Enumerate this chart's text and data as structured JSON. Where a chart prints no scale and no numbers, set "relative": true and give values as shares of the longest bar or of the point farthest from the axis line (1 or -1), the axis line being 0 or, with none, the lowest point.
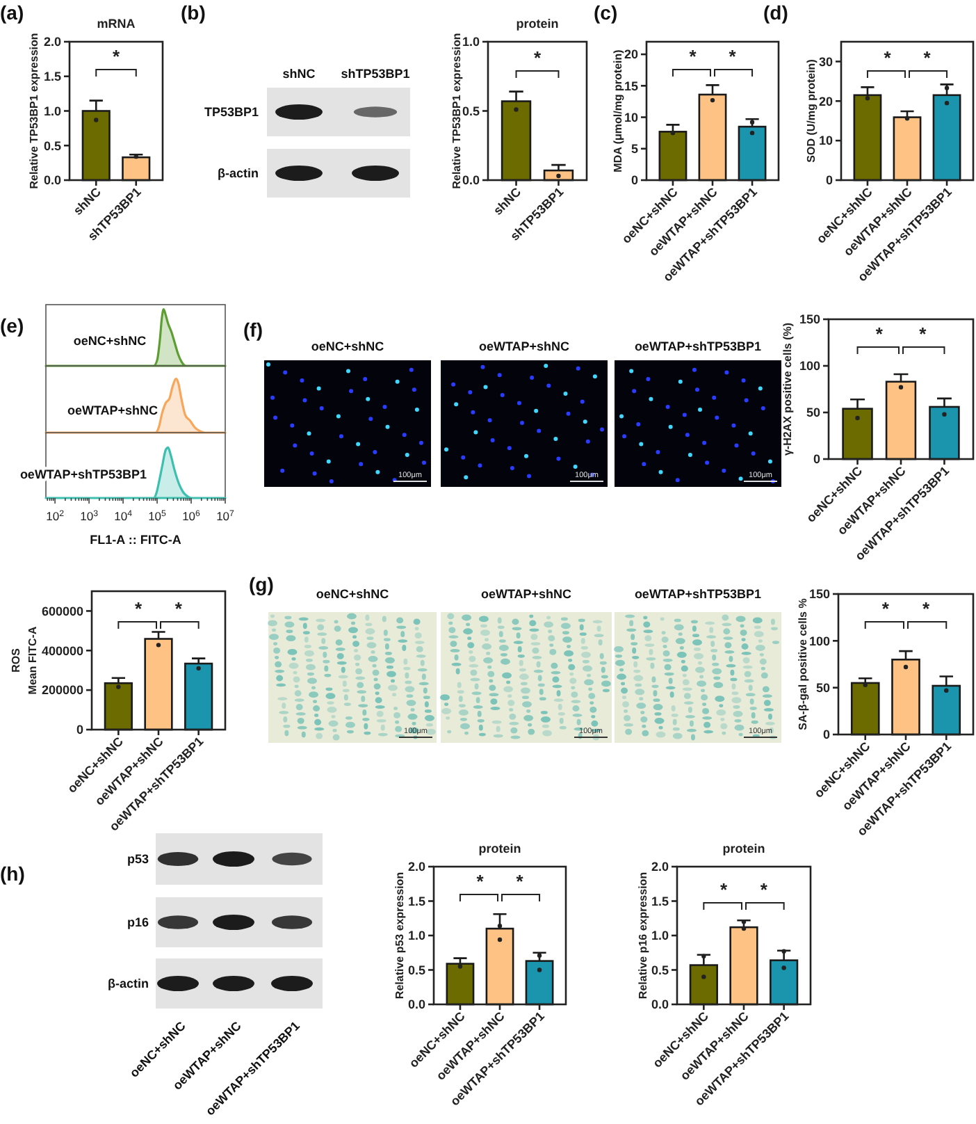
{
  "chart_data": [
    {
      "type": "bar",
      "title": "mRNA",
      "ylabel": "Relative TP53BP1 expression",
      "categories": [
        "shNC",
        "shTP53BP1"
      ],
      "ylim": [
        0,
        2
      ],
      "yticks": [
        {
          "value": 0,
          "label": "0.0"
        },
        {
          "value": 0.5,
          "label": "0.5"
        },
        {
          "value": 1,
          "label": "1.0"
        },
        {
          "value": 1.5,
          "label": "1.5"
        },
        {
          "value": 2,
          "label": "2.0"
        }
      ],
      "marker": "circle",
      "series": [
        {
          "type": "bar",
          "colors": [
            "#6b6b00",
            "#fec384"
          ],
          "values": [
            1.0,
            0.33
          ],
          "errors": [
            [
              1.0,
              1.15
            ],
            [
              0.33,
              0.37
            ]
          ]
        },
        {
          "type": "scatter",
          "color": "#222222",
          "x": [
            "shNC",
            "shTP53BP1"
          ],
          "values": [
            0.87,
            0.34
          ]
        }
      ],
      "annotations": [
        "(a)",
        "*"
      ]
    },
    {
      "type": "other",
      "categories": [
        "shNC",
        "shTP53BP1"
      ],
      "y_categories": [
        "TP53BP1",
        "β-actin"
      ],
      "annotations": [
        "(b)"
      ]
    },
    {
      "type": "bar",
      "title": "protein",
      "ylabel": "Relative TP53BP1 expression",
      "categories": [
        "shNC",
        "shTP53BP1"
      ],
      "ylim": [
        0,
        1
      ],
      "yticks": [
        {
          "value": 0,
          "label": "0.0"
        },
        {
          "value": 0.5,
          "label": "0.5"
        },
        {
          "value": 1,
          "label": "1.0"
        }
      ],
      "marker": "circle",
      "series": [
        {
          "type": "bar",
          "colors": [
            "#6b6b00",
            "#fec384"
          ],
          "values": [
            0.57,
            0.07
          ],
          "errors": [
            [
              0.57,
              0.64
            ],
            [
              0.07,
              0.11
            ]
          ]
        },
        {
          "type": "scatter",
          "color": "#222222",
          "x": [
            "shNC",
            "shTP53BP1"
          ],
          "values": [
            0.51,
            0.03
          ]
        }
      ],
      "annotations": [
        "*"
      ]
    },
    {
      "type": "bar",
      "ylabel": "MDA (μmol/mg protein)",
      "categories": [
        "oeNC+shNC",
        "oeWTAP+shNC",
        "oeWTAP+shTP53BP1"
      ],
      "ylim": [
        0,
        22
      ],
      "yticks": [
        0,
        5,
        10,
        15,
        20
      ],
      "marker": "circle",
      "series": [
        {
          "type": "bar",
          "colors": [
            "#6b6b00",
            "#fec384",
            "#1b94ad"
          ],
          "values": [
            7.7,
            13.6,
            8.5
          ],
          "errors": [
            [
              7.7,
              8.8
            ],
            [
              13.6,
              15.1
            ],
            [
              8.5,
              9.7
            ]
          ]
        },
        {
          "type": "scatter",
          "color": "#222222",
          "x": [
            "oeNC+shNC",
            "oeWTAP+shNC",
            "oeWTAP+shTP53BP1",
            "oeWTAP+shTP53BP1"
          ],
          "values": [
            7.5,
            12.7,
            9.2,
            7.5
          ]
        }
      ],
      "annotations": [
        "(c)",
        "*",
        "*"
      ]
    },
    {
      "type": "bar",
      "ylabel": "SOD (U/mg protein)",
      "categories": [
        "oeNC+shNC",
        "oeWTAP+shNC",
        "oeWTAP+shTP53BP1"
      ],
      "ylim": [
        0,
        35
      ],
      "yticks": [
        0,
        10,
        20,
        30
      ],
      "marker": "circle",
      "series": [
        {
          "type": "bar",
          "colors": [
            "#6b6b00",
            "#fec384",
            "#1b94ad"
          ],
          "values": [
            21.5,
            15.9,
            21.5
          ],
          "errors": [
            [
              21.5,
              23.5
            ],
            [
              15.9,
              17.4
            ],
            [
              21.5,
              24.2
            ]
          ]
        },
        {
          "type": "scatter",
          "color": "#222222",
          "x": [
            "oeNC+shNC",
            "oeWTAP+shNC",
            "oeWTAP+shTP53BP1",
            "oeWTAP+shTP53BP1"
          ],
          "values": [
            20.7,
            15.6,
            23.3,
            19.5
          ]
        }
      ],
      "annotations": [
        "(d)",
        "*",
        "*"
      ]
    },
    {
      "type": "area",
      "relative": true,
      "log": "x",
      "xlim": [
        54,
        10000000
      ],
      "x": [
        54,
        79400,
        100000,
        120000,
        138000,
        155000,
        178000,
        209000,
        263000,
        331000,
        417000,
        525000,
        708000,
        10000000
      ],
      "series": [
        {
          "name": "oeNC+shNC",
          "color": "#5c9e31",
          "values": [
            0,
            0,
            0.1,
            0.45,
            0.85,
            1,
            0.9,
            0.75,
            0.6,
            0.4,
            0.2,
            0.07,
            0,
            0
          ]
        }
      ],
      "annotations": [
        "(e)"
      ]
    },
    {
      "type": "area",
      "relative": true,
      "log": "x",
      "xlim": [
        54,
        10000000
      ],
      "x": [
        54,
        89100,
        112000,
        141000,
        178000,
        229000,
        282000,
        363000,
        427000,
        501000,
        676000,
        933000,
        1260000,
        1780000,
        2510000,
        10000000
      ],
      "series": [
        {
          "name": "oeWTAP+shNC",
          "color": "#f7a65a",
          "values": [
            0,
            0,
            0.1,
            0.37,
            0.55,
            0.63,
            0.85,
            1,
            0.9,
            0.67,
            0.32,
            0.22,
            0.1,
            0.03,
            0,
            0
          ]
        }
      ]
    },
    {
      "type": "area",
      "relative": true,
      "log": "x",
      "xlim": [
        54,
        10000000
      ],
      "xticks": [
        {
          "value": 60,
          "label": null
        },
        {
          "value": 70,
          "label": null
        },
        {
          "value": 80,
          "label": null
        },
        {
          "value": 90,
          "label": null
        },
        {
          "value": 100,
          "label": "10$^{2}$"
        },
        {
          "value": 200,
          "label": null
        },
        {
          "value": 300,
          "label": null
        },
        {
          "value": 400,
          "label": null
        },
        {
          "value": 500,
          "label": null
        },
        {
          "value": 600,
          "label": null
        },
        {
          "value": 700,
          "label": null
        },
        {
          "value": 800,
          "label": null
        },
        {
          "value": 900,
          "label": null
        },
        {
          "value": 1000,
          "label": "10$^{3}$"
        },
        {
          "value": 2000,
          "label": null
        },
        {
          "value": 3000,
          "label": null
        },
        {
          "value": 4000,
          "label": null
        },
        {
          "value": 5000,
          "label": null
        },
        {
          "value": 6000,
          "label": null
        },
        {
          "value": 7000,
          "label": null
        },
        {
          "value": 8000,
          "label": null
        },
        {
          "value": 9000,
          "label": null
        },
        {
          "value": 10000,
          "label": "10$^{4}$"
        },
        {
          "value": 20000,
          "label": null
        },
        {
          "value": 30000,
          "label": null
        },
        {
          "value": 40000,
          "label": null
        },
        {
          "value": 50000,
          "label": null
        },
        {
          "value": 60000,
          "label": null
        },
        {
          "value": 70000,
          "label": null
        },
        {
          "value": 80000,
          "label": null
        },
        {
          "value": 90000,
          "label": null
        },
        {
          "value": 100000,
          "label": "10$^{5}$"
        },
        {
          "value": 200000,
          "label": null
        },
        {
          "value": 300000,
          "label": null
        },
        {
          "value": 400000,
          "label": null
        },
        {
          "value": 500000,
          "label": null
        },
        {
          "value": 600000,
          "label": null
        },
        {
          "value": 700000,
          "label": null
        },
        {
          "value": 800000,
          "label": null
        },
        {
          "value": 900000,
          "label": null
        },
        {
          "value": 1000000,
          "label": "10$^{6}$"
        },
        {
          "value": 2000000,
          "label": null
        },
        {
          "value": 3000000,
          "label": null
        },
        {
          "value": 4000000,
          "label": null
        },
        {
          "value": 5000000,
          "label": null
        },
        {
          "value": 6000000,
          "label": null
        },
        {
          "value": 7000000,
          "label": null
        },
        {
          "value": 8000000,
          "label": null
        },
        {
          "value": 9000000,
          "label": null
        },
        {
          "value": 10000000,
          "label": "10$^{7}$"
        }
      ],
      "tick_labels": "x",
      "xlabel": "FL1-A :: FITC-A",
      "x": [
        54,
        79400,
        95500,
        112000,
        141000,
        178000,
        209000,
        251000,
        316000,
        427000,
        589000,
        794000,
        1000000,
        10000000
      ],
      "series": [
        {
          "name": "oeWTAP+shTP53BP1",
          "color": "#3dbfb0",
          "values": [
            0,
            0,
            0.1,
            0.3,
            0.63,
            0.95,
            1,
            0.85,
            0.58,
            0.3,
            0.11,
            0.03,
            0,
            0
          ]
        }
      ]
    },
    {
      "type": "other",
      "categories": [
        "oeNC+shNC",
        "oeWTAP+shNC",
        "oeWTAP+shTP53BP1"
      ],
      "annotations": [
        "(f)",
        "100μm",
        "100μm",
        "100μm"
      ]
    },
    {
      "type": "bar",
      "ylabel": "γ-H2AX positive cells (%)",
      "categories": [
        "oeNC+shNC",
        "oeWTAP+shNC",
        "oeWTAP+shTP53BP1"
      ],
      "ylim": [
        0,
        150
      ],
      "yticks": [
        0,
        50,
        100,
        150
      ],
      "marker": "circle",
      "series": [
        {
          "type": "bar",
          "colors": [
            "#6b6b00",
            "#fec384",
            "#1b94ad"
          ],
          "values": [
            54,
            83,
            56
          ],
          "errors": [
            [
              54,
              64
            ],
            [
              83,
              91
            ],
            [
              56,
              65
            ]
          ]
        },
        {
          "type": "scatter",
          "color": "#222222",
          "x": [
            "oeNC+shNC",
            "oeWTAP+shNC",
            "oeWTAP+shTP53BP1"
          ],
          "values": [
            44,
            77,
            48
          ]
        }
      ],
      "annotations": [
        "*",
        "*"
      ]
    },
    {
      "type": "bar",
      "ylabel": "ROS\nMean FITC-A",
      "categories": [
        "oeNC+shNC",
        "oeWTAP+shNC",
        "oeWTAP+shTP53BP1"
      ],
      "ylim": [
        0,
        700000
      ],
      "yticks": [
        0,
        200000,
        400000,
        600000
      ],
      "marker": "circle",
      "series": [
        {
          "type": "bar",
          "colors": [
            "#6b6b00",
            "#fec384",
            "#1b94ad"
          ],
          "values": [
            235000,
            459000,
            334000
          ],
          "errors": [
            [
              235000,
              261000
            ],
            [
              459000,
              494000
            ],
            [
              334000,
              360000
            ]
          ]
        },
        {
          "type": "scatter",
          "color": "#222222",
          "x": [
            "oeNC+shNC",
            "oeWTAP+shNC",
            "oeWTAP+shTP53BP1"
          ],
          "values": [
            216000,
            428000,
            310000
          ]
        }
      ],
      "annotations": [
        "*",
        "*"
      ]
    },
    {
      "type": "other",
      "categories": [
        "oeNC+shNC",
        "oeWTAP+shNC",
        "oeWTAP+shTP53BP1"
      ],
      "annotations": [
        "(g)",
        "100μm",
        "100μm",
        "100μm"
      ]
    },
    {
      "type": "bar",
      "ylabel": "SA-β-gal positive cells %",
      "categories": [
        "oeNC+shNC",
        "oeWTAP+shNC",
        "oeWTAP+shTP53BP1"
      ],
      "ylim": [
        0,
        150
      ],
      "yticks": [
        0,
        50,
        100,
        150
      ],
      "marker": "circle",
      "series": [
        {
          "type": "bar",
          "colors": [
            "#6b6b00",
            "#fec384",
            "#1b94ad"
          ],
          "values": [
            55,
            80,
            52
          ],
          "errors": [
            [
              55,
              60
            ],
            [
              80,
              89
            ],
            [
              52,
              62
            ]
          ]
        },
        {
          "type": "scatter",
          "color": "#222222",
          "x": [
            "oeNC+shNC",
            "oeWTAP+shNC",
            "oeWTAP+shTP53BP1"
          ],
          "values": [
            53,
            72,
            47
          ]
        }
      ],
      "annotations": [
        "*",
        "*"
      ]
    },
    {
      "type": "other",
      "categories": [
        "oeNC+shNC",
        "oeWTAP+shNC",
        "oeWTAP+shTP53BP1"
      ],
      "y_categories": [
        "p53",
        "p16",
        "β-actin"
      ],
      "annotations": [
        "(h)"
      ]
    },
    {
      "type": "bar",
      "title": "protein",
      "ylabel": "Relative p53 expression",
      "categories": [
        "oeNC+shNC",
        "oeWTAP+shNC",
        "oeWTAP+shTP53BP1"
      ],
      "ylim": [
        0,
        2
      ],
      "yticks": [
        {
          "value": 0,
          "label": "0.0"
        },
        {
          "value": 0.5,
          "label": "0.5"
        },
        {
          "value": 1,
          "label": "1.0"
        },
        {
          "value": 1.5,
          "label": "1.5"
        },
        {
          "value": 2,
          "label": "2.0"
        }
      ],
      "marker": "circle",
      "series": [
        {
          "type": "bar",
          "colors": [
            "#6b6b00",
            "#fec384",
            "#1b94ad"
          ],
          "values": [
            0.59,
            1.1,
            0.63
          ],
          "errors": [
            [
              0.59,
              0.67
            ],
            [
              1.1,
              1.31
            ],
            [
              0.63,
              0.75
            ]
          ]
        },
        {
          "type": "scatter",
          "color": "#222222",
          "x": [
            "oeNC+shNC",
            "oeWTAP+shNC",
            "oeWTAP+shNC",
            "oeWTAP+shTP53BP1",
            "oeWTAP+shTP53BP1"
          ],
          "values": [
            0.55,
            1.14,
            0.94,
            0.71,
            0.5
          ]
        }
      ],
      "annotations": [
        "*",
        "*"
      ]
    },
    {
      "type": "bar",
      "title": "protein",
      "ylabel": "Relative p16 expression",
      "categories": [
        "oeNC+shNC",
        "oeWTAP+shNC",
        "oeWTAP+shTP53BP1"
      ],
      "ylim": [
        0,
        2
      ],
      "yticks": [
        {
          "value": 0,
          "label": "0.0"
        },
        {
          "value": 0.5,
          "label": "0.5"
        },
        {
          "value": 1,
          "label": "1.0"
        },
        {
          "value": 1.5,
          "label": "1.5"
        },
        {
          "value": 2,
          "label": "2.0"
        }
      ],
      "marker": "circle",
      "series": [
        {
          "type": "bar",
          "colors": [
            "#6b6b00",
            "#fec384",
            "#1b94ad"
          ],
          "values": [
            0.57,
            1.12,
            0.64
          ],
          "errors": [
            [
              0.57,
              0.72
            ],
            [
              1.12,
              1.22
            ],
            [
              0.64,
              0.78
            ]
          ]
        },
        {
          "type": "scatter",
          "color": "#222222",
          "x": [
            "oeNC+shNC",
            "oeNC+shNC",
            "oeWTAP+shNC",
            "oeWTAP+shNC",
            "oeWTAP+shTP53BP1",
            "oeWTAP+shTP53BP1"
          ],
          "values": [
            0.7,
            0.4,
            1.2,
            1.1,
            0.53,
            0.77
          ]
        }
      ],
      "annotations": [
        "*",
        "*"
      ]
    }
  ]
}
